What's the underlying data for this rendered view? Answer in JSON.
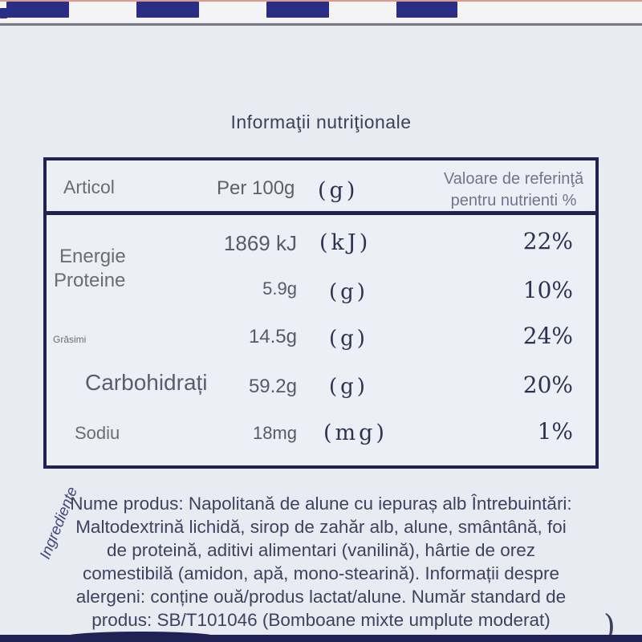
{
  "title": "Informaţii nutriţionale",
  "colors": {
    "stripe_navy": "#2b2d85",
    "table_border_navy": "#20234f",
    "label_gray": "#6b6c74",
    "serif_navy": "#2d3152",
    "body_text": "#3e4260",
    "background": "#e9ebf2"
  },
  "table": {
    "header": {
      "item": "Articol",
      "quantity": "Per 100g",
      "quantity_unit": "(g)",
      "reference_line1": "Valoare de referinţă",
      "reference_line2": "pentru nutrienti %"
    },
    "rows": [
      {
        "label": "Energie",
        "value": "1869 kJ",
        "unit": "(kJ)",
        "percent": "22%"
      },
      {
        "label": "Proteine",
        "value": "5.9g",
        "unit": "(g)",
        "percent": "10%"
      },
      {
        "label": "Grăsimi",
        "value": "14.5g",
        "unit": "(g)",
        "percent": "24%"
      },
      {
        "label": "Carbohidrați",
        "value": "59.2g",
        "unit": "(g)",
        "percent": "20%"
      },
      {
        "label": "Sodiu",
        "value": "18mg",
        "unit": "(mg)",
        "percent": "1%"
      }
    ]
  },
  "side_label": "Ingrediente",
  "description_lines": [
    "Nume produs: Napolitană de alune cu iepuraș alb Întrebuintări:",
    "Maltodextrină lichidă, sirop de zahăr alb, alune, smântână, foi",
    "de proteină, aditivi alimentari (vanilină), hârtie de orez",
    "comestibilă (amidon, apă, mono-stearină). Informații despre",
    "alergeni: conține ouă/produs lactat/alune. Număr standard de",
    "produs: SB/T101046 (Bomboane mixte umplute moderat)"
  ],
  "stray_glyph": ")"
}
